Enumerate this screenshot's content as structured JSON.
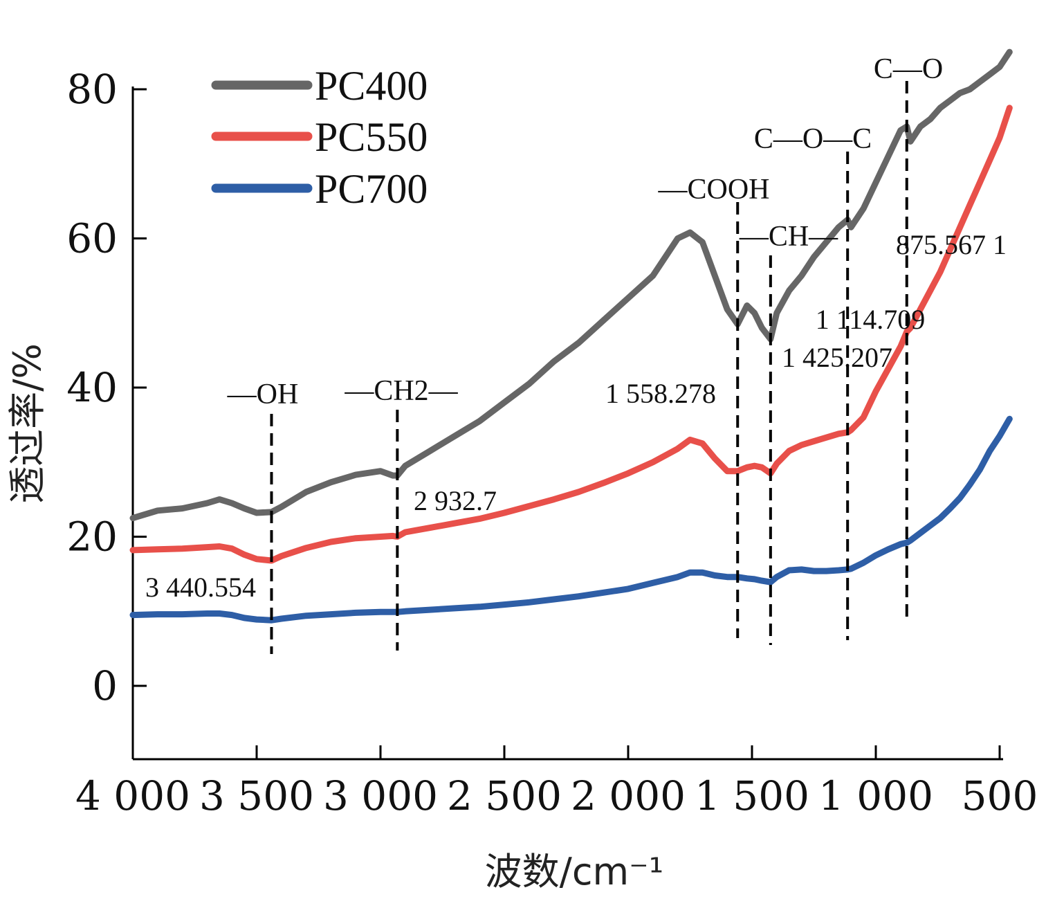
{
  "chart_data": {
    "type": "line",
    "xlabel": "波数/cm⁻¹",
    "ylabel": "透过率/%",
    "xlim": [
      4000,
      450
    ],
    "ylim": [
      -10,
      80
    ],
    "x_ticks": [
      4000,
      3500,
      3000,
      2500,
      2000,
      1500,
      1000,
      500
    ],
    "x_tick_labels": [
      "4 000",
      "3 500",
      "3 000",
      "2 500",
      "2 000",
      "1 500",
      "1 000",
      "500"
    ],
    "y_ticks": [
      0,
      20,
      40,
      60,
      80
    ],
    "y_tick_labels": [
      "0",
      "20",
      "40",
      "60",
      "80"
    ],
    "legend": {
      "placement": "top-left"
    },
    "series": [
      {
        "name": "PC400",
        "color": "#666666",
        "x": [
          4000,
          3900,
          3800,
          3700,
          3650,
          3600,
          3550,
          3500,
          3440,
          3400,
          3300,
          3200,
          3100,
          3000,
          2950,
          2932,
          2900,
          2800,
          2700,
          2600,
          2500,
          2400,
          2300,
          2200,
          2100,
          2000,
          1900,
          1800,
          1750,
          1700,
          1650,
          1600,
          1558,
          1520,
          1490,
          1460,
          1425,
          1400,
          1350,
          1300,
          1250,
          1200,
          1150,
          1114,
          1100,
          1050,
          1000,
          950,
          900,
          875,
          860,
          820,
          780,
          740,
          700,
          660,
          620,
          580,
          540,
          500,
          460
        ],
        "y": [
          22.5,
          23.5,
          23.8,
          24.5,
          25,
          24.5,
          23.8,
          23.2,
          23.3,
          24,
          26,
          27.3,
          28.3,
          28.8,
          28.2,
          28.2,
          29.5,
          31.5,
          33.5,
          35.5,
          38,
          40.5,
          43.5,
          46,
          49,
          52,
          55,
          60,
          60.8,
          59.5,
          55,
          50.5,
          48.5,
          51,
          50,
          48,
          46.5,
          50,
          53,
          55,
          57.5,
          59.5,
          61.5,
          62.5,
          61.5,
          64,
          67.5,
          71,
          74.5,
          75,
          73,
          75,
          76,
          77.5,
          78.5,
          79.5,
          80,
          81,
          82,
          83,
          85
        ]
      },
      {
        "name": "PC550",
        "color": "#e8504a",
        "x": [
          4000,
          3900,
          3800,
          3700,
          3650,
          3600,
          3550,
          3500,
          3440,
          3400,
          3300,
          3200,
          3100,
          3000,
          2950,
          2932,
          2900,
          2800,
          2700,
          2600,
          2500,
          2400,
          2300,
          2200,
          2100,
          2000,
          1900,
          1800,
          1750,
          1700,
          1650,
          1600,
          1558,
          1520,
          1490,
          1460,
          1425,
          1400,
          1350,
          1300,
          1250,
          1200,
          1150,
          1114,
          1100,
          1050,
          1000,
          950,
          900,
          875,
          860,
          820,
          780,
          740,
          700,
          660,
          620,
          580,
          540,
          500,
          460
        ],
        "y": [
          18.2,
          18.3,
          18.4,
          18.6,
          18.7,
          18.4,
          17.6,
          17,
          16.8,
          17.4,
          18.5,
          19.3,
          19.8,
          20,
          20.1,
          20,
          20.6,
          21.2,
          21.8,
          22.4,
          23.2,
          24.1,
          25,
          26,
          27.2,
          28.5,
          30,
          31.8,
          33,
          32.5,
          30.5,
          28.8,
          28.8,
          29.3,
          29.5,
          29.3,
          28.5,
          29.8,
          31.5,
          32.3,
          32.8,
          33.3,
          33.8,
          34,
          34.3,
          36,
          39.5,
          42.5,
          45.5,
          47.5,
          48,
          50.5,
          53,
          55.5,
          58.5,
          61.5,
          64.5,
          67.5,
          70.5,
          73.5,
          77.5
        ]
      },
      {
        "name": "PC700",
        "color": "#2e5ea6",
        "x": [
          4000,
          3900,
          3800,
          3700,
          3650,
          3600,
          3550,
          3500,
          3440,
          3400,
          3300,
          3200,
          3100,
          3000,
          2950,
          2932,
          2900,
          2800,
          2700,
          2600,
          2500,
          2400,
          2300,
          2200,
          2100,
          2000,
          1900,
          1800,
          1750,
          1700,
          1650,
          1600,
          1558,
          1520,
          1490,
          1460,
          1425,
          1400,
          1350,
          1300,
          1250,
          1200,
          1150,
          1114,
          1100,
          1050,
          1000,
          950,
          900,
          875,
          860,
          820,
          780,
          740,
          700,
          660,
          620,
          580,
          540,
          500,
          460
        ],
        "y": [
          9.5,
          9.6,
          9.6,
          9.7,
          9.7,
          9.5,
          9.1,
          8.9,
          8.8,
          9,
          9.4,
          9.6,
          9.8,
          9.9,
          9.9,
          9.9,
          10,
          10.2,
          10.4,
          10.6,
          10.9,
          11.2,
          11.6,
          12,
          12.5,
          13,
          13.8,
          14.6,
          15.2,
          15.2,
          14.8,
          14.6,
          14.6,
          14.4,
          14.3,
          14.1,
          13.9,
          14.6,
          15.5,
          15.6,
          15.4,
          15.4,
          15.5,
          15.6,
          15.7,
          16.5,
          17.5,
          18.3,
          19,
          19.2,
          19.5,
          20.5,
          21.5,
          22.5,
          23.8,
          25.2,
          27,
          29,
          31.5,
          33.5,
          35.8
        ]
      }
    ],
    "vlines": [
      {
        "x": 3440,
        "group": "—OH",
        "peak": "3 440.554"
      },
      {
        "x": 2932,
        "group": "—CH2—",
        "peak": "2 932.7"
      },
      {
        "x": 1558,
        "group": "—COOH",
        "peak": "1 558.278"
      },
      {
        "x": 1425,
        "group": "—CH—",
        "peak": "1 425.207"
      },
      {
        "x": 1114,
        "group": "C—O—C",
        "peak": "1 114.709"
      },
      {
        "x": 875,
        "group": "C—O",
        "peak": "875.567 1"
      }
    ]
  }
}
